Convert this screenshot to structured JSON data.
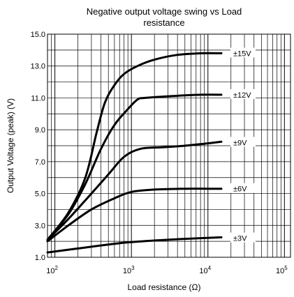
{
  "chart_data": {
    "type": "line",
    "title_line1": "Negative output voltage swing vs Load",
    "title_line2": "resistance",
    "xlabel": "Load resistance (Ω)",
    "ylabel": "Output Voltage (peak) (V)",
    "x_scale": "log",
    "xlim": [
      80,
      120000
    ],
    "ylim": [
      1.0,
      15.0
    ],
    "grid": true,
    "x_ticks": [
      {
        "value": 100,
        "base": "10",
        "exp": "2"
      },
      {
        "value": 1000,
        "base": "10",
        "exp": "3"
      },
      {
        "value": 10000,
        "base": "10",
        "exp": "4"
      },
      {
        "value": 100000,
        "base": "10",
        "exp": "5"
      }
    ],
    "y_ticks": [
      {
        "value": 1.0,
        "label": "1.0"
      },
      {
        "value": 3.0,
        "label": "3.0"
      },
      {
        "value": 5.0,
        "label": "5.0"
      },
      {
        "value": 7.0,
        "label": "7.0"
      },
      {
        "value": 9.0,
        "label": "9.0"
      },
      {
        "value": 11.0,
        "label": "11.0"
      },
      {
        "value": 13.0,
        "label": "13.0"
      },
      {
        "value": 15.0,
        "label": "15.0"
      }
    ],
    "series": [
      {
        "name": "±15V",
        "label_value": 13.8,
        "points": [
          [
            80,
            2.1
          ],
          [
            150,
            3.8
          ],
          [
            250,
            6.0
          ],
          [
            350,
            8.8
          ],
          [
            450,
            10.7
          ],
          [
            600,
            11.8
          ],
          [
            800,
            12.5
          ],
          [
            1200,
            13.0
          ],
          [
            2000,
            13.4
          ],
          [
            4000,
            13.7
          ],
          [
            8000,
            13.8
          ],
          [
            15000,
            13.8
          ]
        ]
      },
      {
        "name": "±12V",
        "label_value": 11.2,
        "points": [
          [
            80,
            2.1
          ],
          [
            150,
            3.7
          ],
          [
            250,
            5.6
          ],
          [
            400,
            7.8
          ],
          [
            600,
            9.3
          ],
          [
            900,
            10.3
          ],
          [
            1200,
            10.9
          ],
          [
            1500,
            11.0
          ],
          [
            3000,
            11.1
          ],
          [
            8000,
            11.2
          ],
          [
            15000,
            11.2
          ]
        ]
      },
      {
        "name": "±9V",
        "label_value": 8.2,
        "points": [
          [
            80,
            2.1
          ],
          [
            150,
            3.4
          ],
          [
            300,
            5.0
          ],
          [
            500,
            6.2
          ],
          [
            800,
            7.3
          ],
          [
            1300,
            7.8
          ],
          [
            2500,
            7.9
          ],
          [
            5000,
            8.0
          ],
          [
            10000,
            8.15
          ],
          [
            15000,
            8.25
          ]
        ]
      },
      {
        "name": "±6V",
        "label_value": 5.3,
        "points": [
          [
            80,
            2.0
          ],
          [
            150,
            3.0
          ],
          [
            300,
            4.0
          ],
          [
            600,
            4.7
          ],
          [
            1000,
            5.1
          ],
          [
            2000,
            5.25
          ],
          [
            5000,
            5.3
          ],
          [
            10000,
            5.3
          ],
          [
            15000,
            5.3
          ]
        ]
      },
      {
        "name": "±3V",
        "label_value": 2.2,
        "points": [
          [
            80,
            1.3
          ],
          [
            200,
            1.55
          ],
          [
            500,
            1.8
          ],
          [
            1000,
            1.95
          ],
          [
            3000,
            2.1
          ],
          [
            8000,
            2.2
          ],
          [
            15000,
            2.25
          ]
        ]
      }
    ]
  }
}
